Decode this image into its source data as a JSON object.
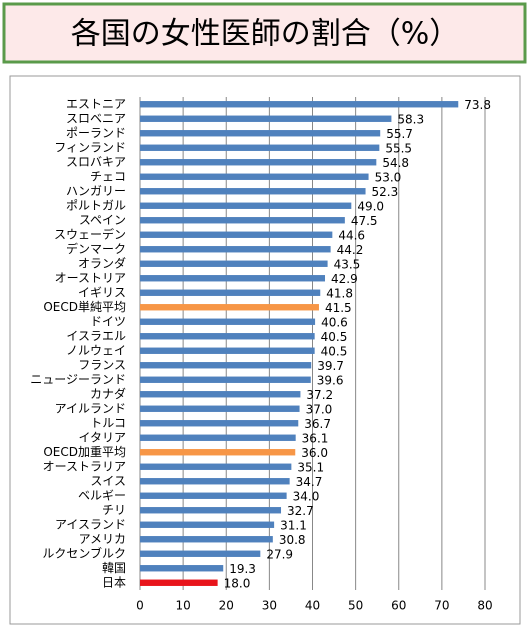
{
  "chart_data": {
    "type": "bar",
    "orientation": "horizontal",
    "title": "各国の女性医師の割合（%）",
    "categories": [
      "エストニア",
      "スロベニア",
      "ポーランド",
      "フィンランド",
      "スロバキア",
      "チェコ",
      "ハンガリー",
      "ポルトガル",
      "スペイン",
      "スウェーデン",
      "デンマーク",
      "オランダ",
      "オーストリア",
      "イギリス",
      "OECD単純平均",
      "ドイツ",
      "イスラエル",
      "ノルウェイ",
      "フランス",
      "ニュージーランド",
      "カナダ",
      "アイルランド",
      "トルコ",
      "イタリア",
      "OECD加重平均",
      "オーストラリア",
      "スイス",
      "ベルギー",
      "チリ",
      "アイスランド",
      "アメリカ",
      "ルクセンブルク",
      "韓国",
      "日本"
    ],
    "values": [
      73.8,
      58.3,
      55.7,
      55.5,
      54.8,
      53.0,
      52.3,
      49.0,
      47.5,
      44.6,
      44.2,
      43.5,
      42.9,
      41.8,
      41.5,
      40.6,
      40.5,
      40.5,
      39.7,
      39.6,
      37.2,
      37.0,
      36.7,
      36.1,
      36.0,
      35.1,
      34.7,
      34.0,
      32.7,
      31.1,
      30.8,
      27.9,
      19.3,
      18.0
    ],
    "value_labels": [
      "73.8",
      "58.3",
      "55.7",
      "55.5",
      "54.8",
      "53.0",
      "52.3",
      "49.0",
      "47.5",
      "44.6",
      "44.2",
      "43.5",
      "42.9",
      "41.8",
      "41.5",
      "40.6",
      "40.5",
      "40.5",
      "39.7",
      "39.6",
      "37.2",
      "37.0",
      "36.7",
      "36.1",
      "36.0",
      "35.1",
      "34.7",
      "34.0",
      "32.7",
      "31.1",
      "30.8",
      "27.9",
      "19.3",
      "18.0"
    ],
    "colors": [
      "#4f81bd",
      "#4f81bd",
      "#4f81bd",
      "#4f81bd",
      "#4f81bd",
      "#4f81bd",
      "#4f81bd",
      "#4f81bd",
      "#4f81bd",
      "#4f81bd",
      "#4f81bd",
      "#4f81bd",
      "#4f81bd",
      "#4f81bd",
      "#f79646",
      "#4f81bd",
      "#4f81bd",
      "#4f81bd",
      "#4f81bd",
      "#4f81bd",
      "#4f81bd",
      "#4f81bd",
      "#4f81bd",
      "#4f81bd",
      "#f79646",
      "#4f81bd",
      "#4f81bd",
      "#4f81bd",
      "#4f81bd",
      "#4f81bd",
      "#4f81bd",
      "#4f81bd",
      "#4f81bd",
      "#e8141b"
    ],
    "xlim": [
      0,
      80
    ],
    "xticks": [
      0,
      10,
      20,
      30,
      40,
      50,
      60,
      70,
      80
    ],
    "grid": true
  }
}
